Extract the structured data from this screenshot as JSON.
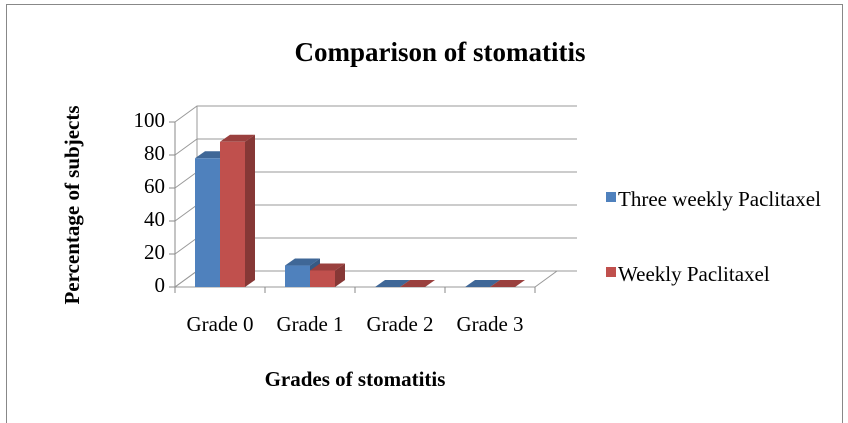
{
  "chart_data": {
    "type": "bar3d",
    "title": "Comparison of stomatitis",
    "x_label": "Grades of stomatitis",
    "y_label": "Percentage of subjects",
    "categories": [
      "Grade 0",
      "Grade 1",
      "Grade 2",
      "Grade 3"
    ],
    "series": [
      {
        "name": "Three weekly Paclitaxel",
        "color": "#4f81bd",
        "values": [
          78,
          13,
          0,
          0
        ]
      },
      {
        "name": "Weekly Paclitaxel",
        "color": "#c0504d",
        "values": [
          88,
          10,
          0,
          0
        ]
      }
    ],
    "ylim": [
      0,
      100
    ],
    "yticks": [
      0,
      20,
      40,
      60,
      80,
      100
    ],
    "grid": true,
    "legend": "right"
  }
}
